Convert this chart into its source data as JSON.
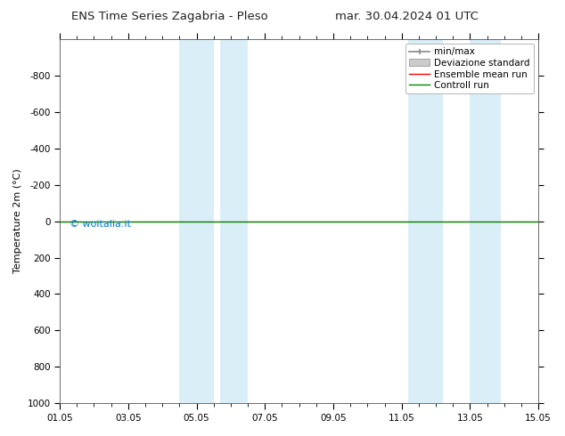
{
  "title_left": "ENS Time Series Zagabria - Pleso",
  "title_right": "mar. 30.04.2024 01 UTC",
  "ylabel": "Temperature 2m (°C)",
  "watermark": "© woitalia.it",
  "xtick_labels": [
    "01.05",
    "03.05",
    "05.05",
    "07.05",
    "09.05",
    "11.05",
    "13.05",
    "15.05"
  ],
  "xtick_positions": [
    0,
    2,
    4,
    6,
    8,
    10,
    12,
    14
  ],
  "xlim": [
    0,
    14
  ],
  "ylim": [
    -1000,
    1000
  ],
  "ytick_positions": [
    -800,
    -600,
    -400,
    -200,
    0,
    200,
    400,
    600,
    800,
    1000
  ],
  "ytick_labels": [
    "-800",
    "-600",
    "-400",
    "-200",
    "0",
    "200",
    "400",
    "600",
    "800",
    "1000"
  ],
  "shaded_bands": [
    {
      "x_start": 3.5,
      "x_end": 4.5,
      "color": "#daeef8"
    },
    {
      "x_start": 4.7,
      "x_end": 5.5,
      "color": "#daeef8"
    },
    {
      "x_start": 10.2,
      "x_end": 11.2,
      "color": "#daeef8"
    },
    {
      "x_start": 12.0,
      "x_end": 12.9,
      "color": "#daeef8"
    }
  ],
  "control_run_y": 0.0,
  "ensemble_mean_y": 0.0,
  "control_run_color": "#008800",
  "ensemble_mean_color": "#ff0000",
  "minmax_color": "#888888",
  "background_color": "#ffffff",
  "plot_bg_color": "#ffffff",
  "legend_labels": [
    "min/max",
    "Deviazione standard",
    "Ensemble mean run",
    "Controll run"
  ],
  "title_fontsize": 9.5,
  "axis_label_fontsize": 8,
  "tick_fontsize": 7.5,
  "legend_fontsize": 7.5
}
